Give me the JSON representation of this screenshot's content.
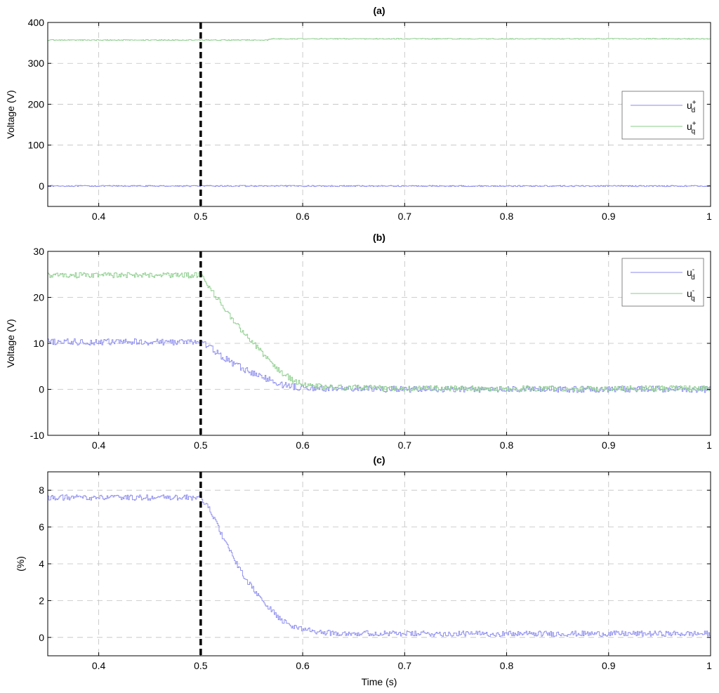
{
  "colors": {
    "series_blue": "#8888ee",
    "series_green": "#88cc88",
    "event_line": "#000000",
    "grid": "#c0c0c0"
  },
  "event_marker": {
    "x": 0.5,
    "style": "dashed"
  },
  "chart_data": [
    {
      "type": "line",
      "title": "(a)",
      "xlabel": "",
      "ylabel": "Voltage (V)",
      "xlim": [
        0.35,
        1
      ],
      "ylim": [
        -50,
        400
      ],
      "xticks": [
        0.4,
        0.5,
        0.6,
        0.7,
        0.8,
        0.9,
        1
      ],
      "xtick_labels": [
        "0.4",
        "0.5",
        "0.6",
        "0.7",
        "0.8",
        "0.9",
        "1"
      ],
      "yticks": [
        0,
        100,
        200,
        300,
        400
      ],
      "ytick_labels": [
        "0",
        "100",
        "200",
        "300",
        "400"
      ],
      "grid": true,
      "legend_position": "right",
      "series": [
        {
          "name": "u_d^+",
          "legend": {
            "base": "u",
            "sup": "+",
            "sub": "d"
          },
          "color": "#8888ee",
          "x": [
            0.35,
            0.5,
            0.565,
            0.6,
            0.7,
            0.8,
            0.9,
            1
          ],
          "y": [
            0,
            0,
            0,
            0,
            0,
            0,
            0,
            0
          ],
          "noise": 1.5
        },
        {
          "name": "u_q^+",
          "legend": {
            "base": "u",
            "sup": "+",
            "sub": "q"
          },
          "color": "#88cc88",
          "x": [
            0.35,
            0.5,
            0.565,
            0.57,
            0.6,
            0.7,
            0.8,
            0.9,
            1
          ],
          "y": [
            357,
            357,
            357,
            360,
            360,
            360,
            360,
            360,
            360
          ],
          "noise": 1.0
        }
      ]
    },
    {
      "type": "line",
      "title": "(b)",
      "xlabel": "",
      "ylabel": "Voltage (V)",
      "xlim": [
        0.35,
        1
      ],
      "ylim": [
        -10,
        30
      ],
      "xticks": [
        0.4,
        0.5,
        0.6,
        0.7,
        0.8,
        0.9,
        1
      ],
      "xtick_labels": [
        "0.4",
        "0.5",
        "0.6",
        "0.7",
        "0.8",
        "0.9",
        "1"
      ],
      "yticks": [
        -10,
        0,
        10,
        20,
        30
      ],
      "ytick_labels": [
        "-10",
        "0",
        "10",
        "20",
        "30"
      ],
      "grid": true,
      "legend_position": "top-right",
      "series": [
        {
          "name": "u_d^-",
          "legend": {
            "base": "u",
            "sup": "-",
            "sub": "d"
          },
          "color": "#8888ee",
          "x": [
            0.35,
            0.5,
            0.51,
            0.52,
            0.53,
            0.54,
            0.55,
            0.56,
            0.57,
            0.58,
            0.6,
            0.7,
            0.8,
            0.9,
            1
          ],
          "y": [
            10.3,
            10.3,
            9.0,
            7.2,
            5.8,
            4.6,
            3.6,
            2.7,
            1.8,
            1.0,
            0.3,
            0,
            0,
            0,
            0
          ],
          "noise": 0.7
        },
        {
          "name": "u_q^-",
          "legend": {
            "base": "u",
            "sup": "-",
            "sub": "q"
          },
          "color": "#88cc88",
          "x": [
            0.35,
            0.5,
            0.51,
            0.52,
            0.53,
            0.54,
            0.55,
            0.56,
            0.57,
            0.58,
            0.59,
            0.6,
            0.62,
            0.7,
            0.8,
            0.9,
            1
          ],
          "y": [
            24.8,
            24.8,
            21.5,
            18.5,
            15.5,
            12.8,
            10.3,
            8.0,
            5.5,
            3.5,
            2.0,
            1.2,
            0.5,
            0.2,
            0.2,
            0.2,
            0.2
          ],
          "noise": 0.6
        }
      ]
    },
    {
      "type": "line",
      "title": "(c)",
      "xlabel": "Time (s)",
      "ylabel": "(%)",
      "xlim": [
        0.35,
        1
      ],
      "ylim": [
        -1,
        9
      ],
      "xticks": [
        0.4,
        0.5,
        0.6,
        0.7,
        0.8,
        0.9,
        1
      ],
      "xtick_labels": [
        "0.4",
        "0.5",
        "0.6",
        "0.7",
        "0.8",
        "0.9",
        "1"
      ],
      "yticks": [
        0,
        2,
        4,
        6,
        8
      ],
      "ytick_labels": [
        "0",
        "2",
        "4",
        "6",
        "8"
      ],
      "grid": true,
      "legend_position": "none",
      "series": [
        {
          "name": "",
          "color": "#8888ee",
          "x": [
            0.35,
            0.5,
            0.51,
            0.52,
            0.53,
            0.54,
            0.55,
            0.56,
            0.57,
            0.58,
            0.59,
            0.6,
            0.62,
            0.7,
            0.8,
            0.9,
            1
          ],
          "y": [
            7.6,
            7.6,
            6.8,
            5.6,
            4.5,
            3.5,
            2.7,
            2.0,
            1.4,
            0.9,
            0.6,
            0.45,
            0.25,
            0.2,
            0.2,
            0.2,
            0.2
          ],
          "noise": 0.15
        }
      ]
    }
  ]
}
